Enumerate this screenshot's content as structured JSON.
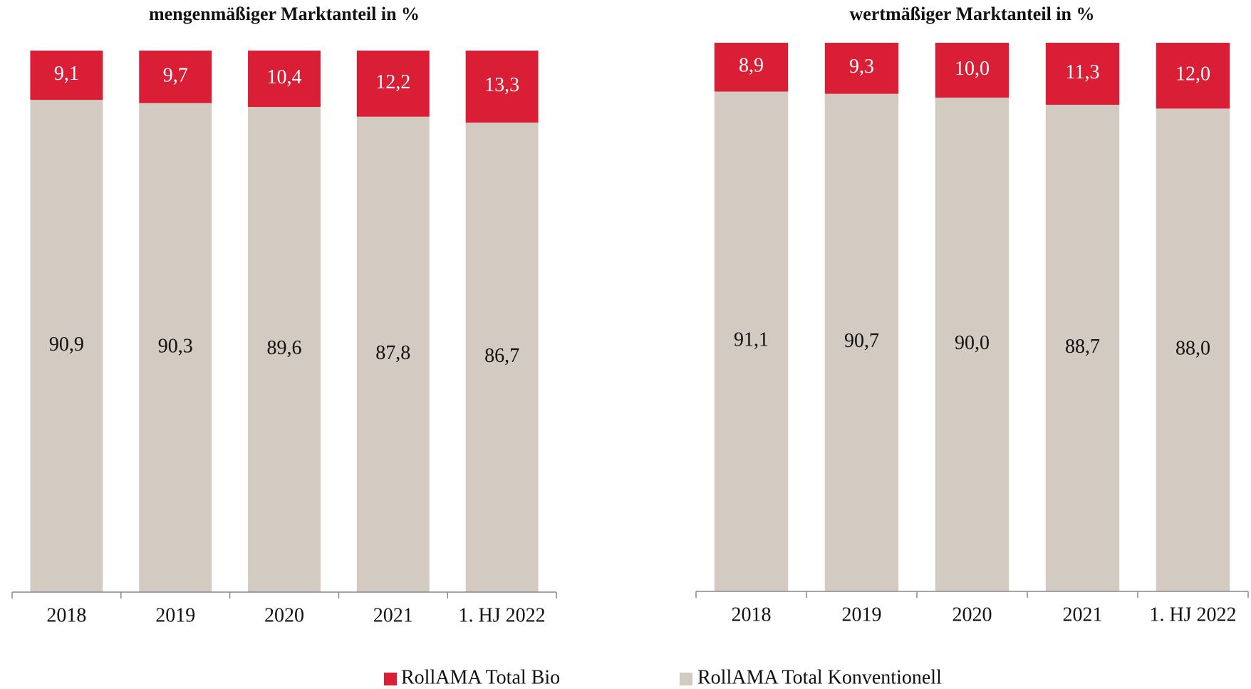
{
  "chart_data": [
    {
      "type": "stacked-bar",
      "title": "mengenmäßiger Marktanteil in %",
      "categories": [
        "2018",
        "2019",
        "2020",
        "2021",
        "1. HJ 2022"
      ],
      "series": [
        {
          "name": "RollAMA Total Bio",
          "color": "#d91e36",
          "values": [
            9.1,
            9.7,
            10.4,
            12.2,
            13.3
          ],
          "value_labels": [
            "9,1",
            "9,7",
            "10,4",
            "12,2",
            "13,3"
          ]
        },
        {
          "name": "RollAMA Total Konventionell",
          "color": "#d3cac1",
          "values": [
            90.9,
            90.3,
            89.6,
            87.8,
            86.7
          ],
          "value_labels": [
            "90,9",
            "90,3",
            "89,6",
            "87,8",
            "86,7"
          ]
        }
      ],
      "ylim": [
        0,
        100
      ]
    },
    {
      "type": "stacked-bar",
      "title": "wertmäßiger Marktanteil in %",
      "categories": [
        "2018",
        "2019",
        "2020",
        "2021",
        "1. HJ 2022"
      ],
      "series": [
        {
          "name": "RollAMA Total Bio",
          "color": "#d91e36",
          "values": [
            8.9,
            9.3,
            10.0,
            11.3,
            12.0
          ],
          "value_labels": [
            "8,9",
            "9,3",
            "10,0",
            "11,3",
            "12,0"
          ]
        },
        {
          "name": "RollAMA Total Konventionell",
          "color": "#d3cac1",
          "values": [
            91.1,
            90.7,
            90.0,
            88.7,
            88.0
          ],
          "value_labels": [
            "91,1",
            "90,7",
            "90,0",
            "88,7",
            "88,0"
          ]
        }
      ],
      "ylim": [
        0,
        100
      ]
    }
  ]
}
